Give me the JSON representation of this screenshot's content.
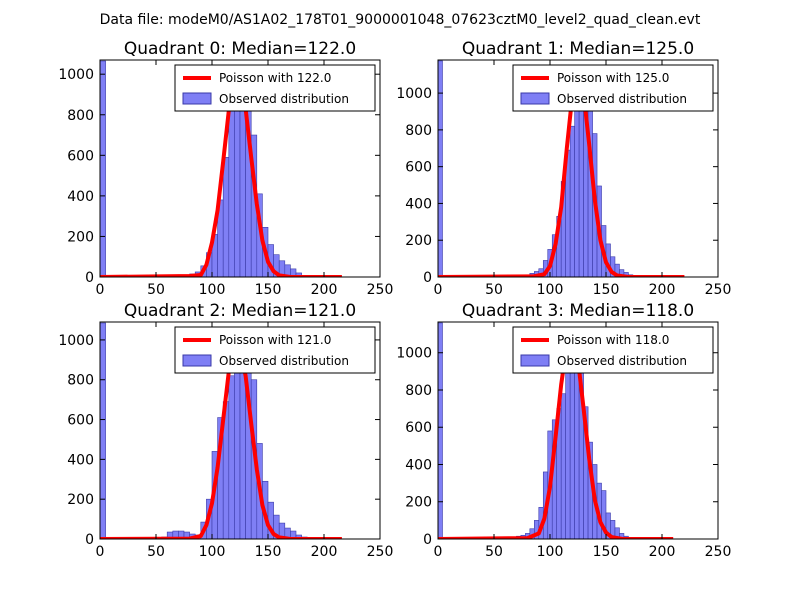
{
  "suptitle": "Data file: modeM0/AS1A02_178T01_9000001048_07623cztM0_level2_quad_clean.evt",
  "colors": {
    "bars_fill": "#7f7ff5",
    "bars_edge": "#3a3aa8",
    "poisson": "#ff0000",
    "axes": "#000000",
    "background": "#ffffff"
  },
  "chart_data": [
    {
      "type": "bar",
      "title": "Quadrant 0: Median=122.0",
      "xlabel": "",
      "ylabel": "",
      "xlim": [
        0,
        250
      ],
      "ylim": [
        0,
        1070
      ],
      "xticks": [
        0,
        50,
        100,
        150,
        200,
        250
      ],
      "yticks": [
        0,
        200,
        400,
        600,
        800,
        1000
      ],
      "legend": {
        "poisson_label": "Poisson with 122.0",
        "observed_label": "Observed distribution",
        "loc": "upper-right"
      },
      "median": 122.0,
      "bin_width": 5.0,
      "bin_starts": [
        0,
        75,
        80,
        85,
        90,
        95,
        100,
        105,
        110,
        115,
        120,
        125,
        130,
        135,
        140,
        145,
        150,
        155,
        160,
        165,
        170,
        175,
        180
      ],
      "counts": [
        1065,
        5,
        15,
        25,
        55,
        120,
        210,
        380,
        590,
        1010,
        1030,
        1020,
        980,
        700,
        410,
        245,
        160,
        110,
        80,
        60,
        40,
        20,
        8
      ],
      "poisson": {
        "x": [
          0,
          80,
          90,
          95,
          100,
          105,
          110,
          115,
          120,
          122,
          125,
          130,
          135,
          140,
          145,
          150,
          155,
          160,
          170,
          180,
          216
        ],
        "y": [
          0,
          5,
          10,
          60,
          170,
          330,
          570,
          820,
          980,
          1010,
          970,
          830,
          590,
          360,
          180,
          75,
          28,
          8,
          0,
          0,
          0
        ]
      }
    },
    {
      "type": "bar",
      "title": "Quadrant 1: Median=125.0",
      "xlabel": "",
      "ylabel": "",
      "xlim": [
        0,
        250
      ],
      "ylim": [
        0,
        1180
      ],
      "xticks": [
        0,
        50,
        100,
        150,
        200,
        250
      ],
      "yticks": [
        0,
        200,
        400,
        600,
        800,
        1000
      ],
      "legend": {
        "poisson_label": "Poisson with 125.0",
        "observed_label": "Observed distribution",
        "loc": "upper-right"
      },
      "median": 125.0,
      "bin_width": 4.0,
      "bin_starts": [
        0,
        70,
        74,
        78,
        82,
        86,
        90,
        94,
        98,
        102,
        106,
        110,
        114,
        118,
        122,
        126,
        130,
        134,
        138,
        142,
        146,
        150,
        154,
        158,
        162,
        166,
        170,
        174
      ],
      "counts": [
        1175,
        8,
        10,
        12,
        20,
        30,
        45,
        90,
        150,
        230,
        330,
        520,
        690,
        820,
        1070,
        1130,
        1105,
        1025,
        780,
        495,
        280,
        180,
        110,
        70,
        40,
        25,
        12,
        5
      ],
      "poisson": {
        "x": [
          0,
          85,
          95,
          100,
          105,
          110,
          115,
          120,
          125,
          130,
          135,
          140,
          145,
          150,
          155,
          160,
          170,
          190,
          220
        ],
        "y": [
          0,
          3,
          15,
          60,
          180,
          380,
          700,
          990,
          1100,
          1000,
          720,
          420,
          200,
          80,
          28,
          8,
          0,
          0,
          0
        ]
      }
    },
    {
      "type": "bar",
      "title": "Quadrant 2: Median=121.0",
      "xlabel": "",
      "ylabel": "",
      "xlim": [
        0,
        250
      ],
      "ylim": [
        0,
        1090
      ],
      "xticks": [
        0,
        50,
        100,
        150,
        200,
        250
      ],
      "yticks": [
        0,
        200,
        400,
        600,
        800,
        1000
      ],
      "legend": {
        "poisson_label": "Poisson with 121.0",
        "observed_label": "Observed distribution",
        "loc": "upper-right"
      },
      "median": 121.0,
      "bin_width": 5.0,
      "bin_starts": [
        0,
        55,
        60,
        65,
        70,
        75,
        80,
        85,
        90,
        95,
        100,
        105,
        110,
        115,
        120,
        125,
        130,
        135,
        140,
        145,
        150,
        155,
        160,
        165,
        170,
        175,
        180
      ],
      "counts": [
        1085,
        10,
        35,
        40,
        40,
        35,
        25,
        20,
        85,
        200,
        440,
        610,
        690,
        820,
        1030,
        1000,
        960,
        800,
        480,
        290,
        185,
        120,
        80,
        55,
        40,
        20,
        10
      ],
      "poisson": {
        "x": [
          0,
          80,
          90,
          95,
          100,
          105,
          110,
          115,
          120,
          121,
          125,
          130,
          135,
          140,
          145,
          150,
          155,
          160,
          170,
          216
        ],
        "y": [
          0,
          2,
          15,
          70,
          180,
          360,
          600,
          840,
          985,
          1000,
          960,
          820,
          580,
          350,
          170,
          70,
          25,
          8,
          0,
          0
        ]
      }
    },
    {
      "type": "bar",
      "title": "Quadrant 3: Median=118.0",
      "xlabel": "",
      "ylabel": "",
      "xlim": [
        0,
        250
      ],
      "ylim": [
        0,
        1165
      ],
      "xticks": [
        0,
        50,
        100,
        150,
        200,
        250
      ],
      "yticks": [
        0,
        200,
        400,
        600,
        800,
        1000
      ],
      "legend": {
        "poisson_label": "Poisson with 118.0",
        "observed_label": "Observed distribution",
        "loc": "upper-right"
      },
      "median": 118.0,
      "bin_width": 4.0,
      "bin_starts": [
        0,
        66,
        70,
        74,
        78,
        82,
        86,
        90,
        94,
        98,
        102,
        106,
        110,
        114,
        118,
        122,
        126,
        130,
        134,
        138,
        142,
        146,
        150,
        154,
        158,
        162,
        166,
        170,
        174
      ],
      "counts": [
        1160,
        8,
        15,
        20,
        30,
        55,
        100,
        170,
        360,
        580,
        640,
        700,
        780,
        1080,
        1130,
        1100,
        1050,
        710,
        520,
        400,
        300,
        260,
        140,
        100,
        60,
        30,
        15,
        8,
        5
      ],
      "poisson": {
        "x": [
          0,
          80,
          90,
          95,
          100,
          105,
          110,
          115,
          118,
          120,
          125,
          130,
          135,
          140,
          145,
          150,
          155,
          165,
          210
        ],
        "y": [
          0,
          5,
          30,
          110,
          280,
          550,
          830,
          1040,
          1090,
          1080,
          960,
          700,
          430,
          210,
          90,
          35,
          10,
          0,
          0
        ]
      }
    }
  ]
}
